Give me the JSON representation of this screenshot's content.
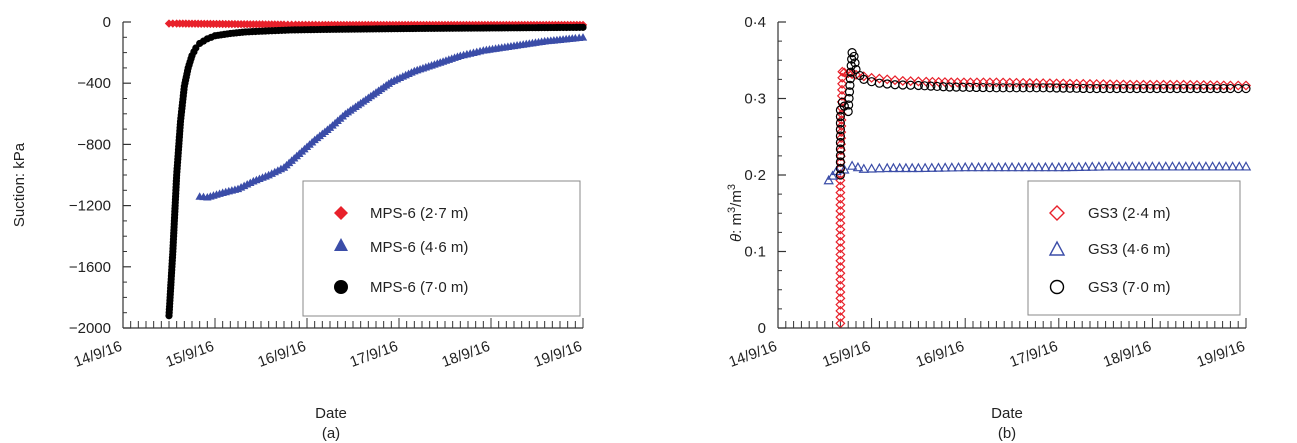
{
  "chart_data": [
    {
      "type": "scatter",
      "panel": "(a)",
      "xlabel": "Date",
      "ylabel": "Suction: kPa",
      "x_ticks": [
        "14/9/16",
        "15/9/16",
        "16/9/16",
        "17/9/16",
        "18/9/16",
        "19/9/16"
      ],
      "x_range": [
        "14/9/16",
        "19/9/16"
      ],
      "y_ticks": [
        "0",
        "−400",
        "−800",
        "−1200",
        "−1600",
        "−2000"
      ],
      "ylim": [
        -2000,
        0
      ],
      "grid": false,
      "legend_position": "center-right",
      "series": [
        {
          "name": "MPS-6 (2·7 m)",
          "marker": "diamond-filled",
          "color": "#e8212b",
          "x": [
            "14/9/16 12:00",
            "14/9/16 14:00",
            "14/9/16 18:00",
            "14/9/16 22:00",
            "15/9/16 02:00",
            "15/9/16 06:00",
            "15/9/16 10:00",
            "15/9/16 14:00",
            "15/9/16 18:00",
            "15/9/16 21:00",
            "16/9/16 04:00",
            "16/9/16 12:00",
            "17/9/16 00:00",
            "17/9/16 12:00",
            "18/9/16 00:00",
            "18/9/16 12:00",
            "19/9/16 00:00"
          ],
          "y": [
            -10,
            -10,
            -11,
            -12,
            -13,
            -14,
            -15,
            -16,
            -17,
            -18,
            -19,
            -19,
            -19,
            -19,
            -19,
            -19,
            -19
          ]
        },
        {
          "name": "MPS-6 (4·6 m)",
          "marker": "triangle-filled",
          "color": "#3b4da8",
          "x": [
            "14/9/16 20:00",
            "14/9/16 22:00",
            "15/9/16 02:00",
            "15/9/16 06:00",
            "15/9/16 10:00",
            "15/9/16 14:00",
            "15/9/16 18:00",
            "15/9/16 22:00",
            "16/9/16 02:00",
            "16/9/16 06:00",
            "16/9/16 10:00",
            "16/9/16 14:00",
            "16/9/16 18:00",
            "16/9/16 22:00",
            "17/9/16 04:00",
            "17/9/16 10:00",
            "17/9/16 16:00",
            "17/9/16 22:00",
            "18/9/16 06:00",
            "18/9/16 14:00",
            "18/9/16 22:00",
            "19/9/16 00:00"
          ],
          "y": [
            -1140,
            -1145,
            -1115,
            -1090,
            -1040,
            -1000,
            -950,
            -860,
            -770,
            -690,
            -600,
            -530,
            -460,
            -390,
            -320,
            -270,
            -220,
            -185,
            -155,
            -125,
            -105,
            -100
          ]
        },
        {
          "name": "MPS-6 (7·0 m)",
          "marker": "circle-filled",
          "color": "#000000",
          "x": [
            "14/9/16 12:00",
            "14/9/16 13:00",
            "14/9/16 14:00",
            "14/9/16 15:00",
            "14/9/16 16:00",
            "14/9/16 17:00",
            "14/9/16 18:00",
            "14/9/16 19:00",
            "14/9/16 20:00",
            "14/9/16 22:00",
            "15/9/16 00:00",
            "15/9/16 04:00",
            "15/9/16 08:00",
            "15/9/16 14:00",
            "15/9/16 20:00",
            "16/9/16 06:00",
            "16/9/16 18:00",
            "17/9/16 06:00",
            "17/9/16 18:00",
            "18/9/16 06:00",
            "18/9/16 18:00",
            "19/9/16 00:00"
          ],
          "y": [
            -1920,
            -1500,
            -1000,
            -650,
            -420,
            -300,
            -220,
            -170,
            -140,
            -110,
            -90,
            -75,
            -65,
            -58,
            -52,
            -48,
            -45,
            -42,
            -40,
            -38,
            -36,
            -35
          ]
        }
      ]
    },
    {
      "type": "scatter",
      "panel": "(b)",
      "xlabel": "Date",
      "ylabel_italic": "θ",
      "ylabel_rest": ": m",
      "ylabel_sup1": "3",
      "ylabel_mid": "/m",
      "ylabel_sup2": "3",
      "x_ticks": [
        "14/9/16",
        "15/9/16",
        "16/9/16",
        "17/9/16",
        "18/9/16",
        "19/9/16"
      ],
      "x_range": [
        "14/9/16",
        "19/9/16"
      ],
      "y_ticks": [
        "0",
        "0·1",
        "0·2",
        "0·3",
        "0·4"
      ],
      "ylim": [
        0,
        0.4
      ],
      "grid": false,
      "legend_position": "bottom-right",
      "series": [
        {
          "name": "GS3 (2·4 m)",
          "marker": "diamond-open",
          "color": "#e8212b",
          "x": [
            "14/9/16 16:00",
            "14/9/16 16:00",
            "14/9/16 16:00",
            "14/9/16 16:30",
            "14/9/16 17:00",
            "14/9/16 18:00",
            "14/9/16 19:00",
            "14/9/16 20:00",
            "14/9/16 22:00",
            "15/9/16 00:00",
            "15/9/16 04:00",
            "15/9/16 08:00",
            "15/9/16 14:00",
            "15/9/16 22:00",
            "16/9/16 08:00",
            "16/9/16 20:00",
            "17/9/16 08:00",
            "17/9/16 20:00",
            "18/9/16 08:00",
            "18/9/16 20:00",
            "19/9/16 00:00"
          ],
          "y": [
            0.006,
            0.137,
            0.193,
            0.335,
            0.334,
            0.333,
            0.332,
            0.331,
            0.329,
            0.327,
            0.325,
            0.323,
            0.322,
            0.321,
            0.321,
            0.32,
            0.319,
            0.318,
            0.318,
            0.317,
            0.317
          ]
        },
        {
          "name": "GS3 (4·6 m)",
          "marker": "triangle-open",
          "color": "#3b4da8",
          "x": [
            "14/9/16 13:00",
            "14/9/16 15:00",
            "14/9/16 17:00",
            "14/9/16 19:00",
            "14/9/16 22:00",
            "15/9/16 04:00",
            "15/9/16 12:00",
            "16/9/16 00:00",
            "16/9/16 12:00",
            "17/9/16 00:00",
            "17/9/16 12:00",
            "18/9/16 00:00",
            "18/9/16 12:00",
            "19/9/16 00:00"
          ],
          "y": [
            0.193,
            0.205,
            0.207,
            0.212,
            0.208,
            0.209,
            0.209,
            0.21,
            0.21,
            0.21,
            0.211,
            0.211,
            0.211,
            0.211
          ]
        },
        {
          "name": "GS3 (7·0 m)",
          "marker": "circle-open",
          "color": "#000000",
          "x": [
            "14/9/16 16:00",
            "14/9/16 16:00",
            "14/9/16 16:30",
            "14/9/16 17:00",
            "14/9/16 18:00",
            "14/9/16 19:00",
            "14/9/16 19:30",
            "14/9/16 20:00",
            "14/9/16 21:00",
            "14/9/16 22:00",
            "15/9/16 00:00",
            "15/9/16 02:00",
            "15/9/16 06:00",
            "15/9/16 12:00",
            "15/9/16 20:00",
            "16/9/16 08:00",
            "16/9/16 20:00",
            "17/9/16 08:00",
            "17/9/16 20:00",
            "18/9/16 08:00",
            "18/9/16 20:00",
            "19/9/16 00:00"
          ],
          "y": [
            0.2,
            0.285,
            0.295,
            0.29,
            0.283,
            0.36,
            0.355,
            0.338,
            0.33,
            0.325,
            0.322,
            0.32,
            0.318,
            0.317,
            0.315,
            0.314,
            0.314,
            0.313,
            0.313,
            0.313,
            0.313,
            0.313
          ]
        }
      ]
    }
  ]
}
